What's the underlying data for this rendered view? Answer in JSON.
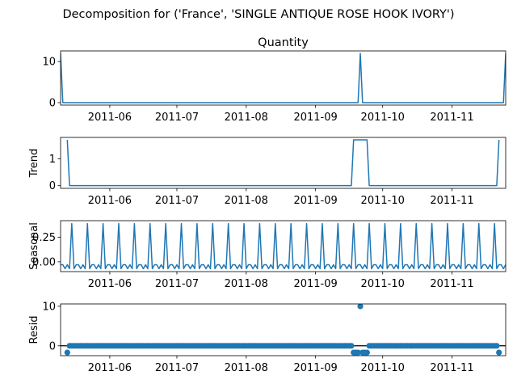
{
  "figure": {
    "suptitle": "Decomposition for ('France', 'SINGLE ANTIQUE ROSE HOOK IVORY')"
  },
  "colors": {
    "series": "#1f77b4",
    "axis": "#000000",
    "background": "#ffffff"
  },
  "chart_data": [
    {
      "type": "line",
      "title": "Quantity",
      "ylabel": "",
      "xlim": [
        "2011-05-10",
        "2011-11-25"
      ],
      "ylim": [
        -0.6,
        12.6
      ],
      "yticks": [
        0,
        10
      ],
      "xticks": [
        "2011-06",
        "2011-07",
        "2011-08",
        "2011-09",
        "2011-10",
        "2011-11"
      ],
      "points": [
        {
          "x": "2011-05-10",
          "y": 12
        },
        {
          "x": "2011-05-11",
          "y": 0
        },
        {
          "x": "2011-09-20",
          "y": 0
        },
        {
          "x": "2011-09-21",
          "y": 12
        },
        {
          "x": "2011-09-22",
          "y": 0
        },
        {
          "x": "2011-11-24",
          "y": 0
        },
        {
          "x": "2011-11-25",
          "y": 12
        }
      ]
    },
    {
      "type": "line",
      "title": "",
      "ylabel": "Trend",
      "xlim": [
        "2011-05-10",
        "2011-11-25"
      ],
      "ylim": [
        -0.1,
        1.8
      ],
      "yticks": [
        0,
        1
      ],
      "xticks": [
        "2011-06",
        "2011-07",
        "2011-08",
        "2011-09",
        "2011-10",
        "2011-11"
      ],
      "points": [
        {
          "x": "2011-05-13",
          "y": 1.71
        },
        {
          "x": "2011-05-14",
          "y": 0
        },
        {
          "x": "2011-09-17",
          "y": 0
        },
        {
          "x": "2011-09-18",
          "y": 1.71
        },
        {
          "x": "2011-09-24",
          "y": 1.71
        },
        {
          "x": "2011-09-25",
          "y": 0
        },
        {
          "x": "2011-11-21",
          "y": 0
        },
        {
          "x": "2011-11-22",
          "y": 1.71
        }
      ]
    },
    {
      "type": "line",
      "title": "",
      "ylabel": "Seasonal",
      "xlim": [
        "2011-05-10",
        "2011-11-25"
      ],
      "ylim": [
        -0.1,
        0.42
      ],
      "yticks": [
        0.0,
        0.25
      ],
      "ytick_labels": [
        "0.00",
        "0.25"
      ],
      "xticks": [
        "2011-06",
        "2011-07",
        "2011-08",
        "2011-09",
        "2011-10",
        "2011-11"
      ],
      "seasonal": {
        "start": "2011-05-10",
        "end": "2011-11-25",
        "period_days": 7,
        "pattern": [
          -0.03,
          -0.03,
          -0.07,
          -0.03,
          -0.07,
          0.39,
          -0.07
        ]
      }
    },
    {
      "type": "scatter",
      "title": "",
      "ylabel": "Resid",
      "xlim": [
        "2011-05-10",
        "2011-11-25"
      ],
      "ylim": [
        -2.5,
        10.6
      ],
      "yticks": [
        0,
        10
      ],
      "xticks": [
        "2011-06",
        "2011-07",
        "2011-08",
        "2011-09",
        "2011-10",
        "2011-11"
      ],
      "baseline": 0,
      "resid": {
        "start": "2011-05-13",
        "end": "2011-11-22",
        "default": 0,
        "overrides": [
          {
            "x": "2011-05-13",
            "y": -1.7
          },
          {
            "x": "2011-09-18",
            "y": -1.7
          },
          {
            "x": "2011-09-19",
            "y": -1.7
          },
          {
            "x": "2011-09-20",
            "y": -1.7
          },
          {
            "x": "2011-09-21",
            "y": 10.0
          },
          {
            "x": "2011-09-22",
            "y": -1.7
          },
          {
            "x": "2011-09-23",
            "y": -1.7
          },
          {
            "x": "2011-09-24",
            "y": -1.7
          },
          {
            "x": "2011-11-22",
            "y": -1.7
          }
        ]
      }
    }
  ]
}
